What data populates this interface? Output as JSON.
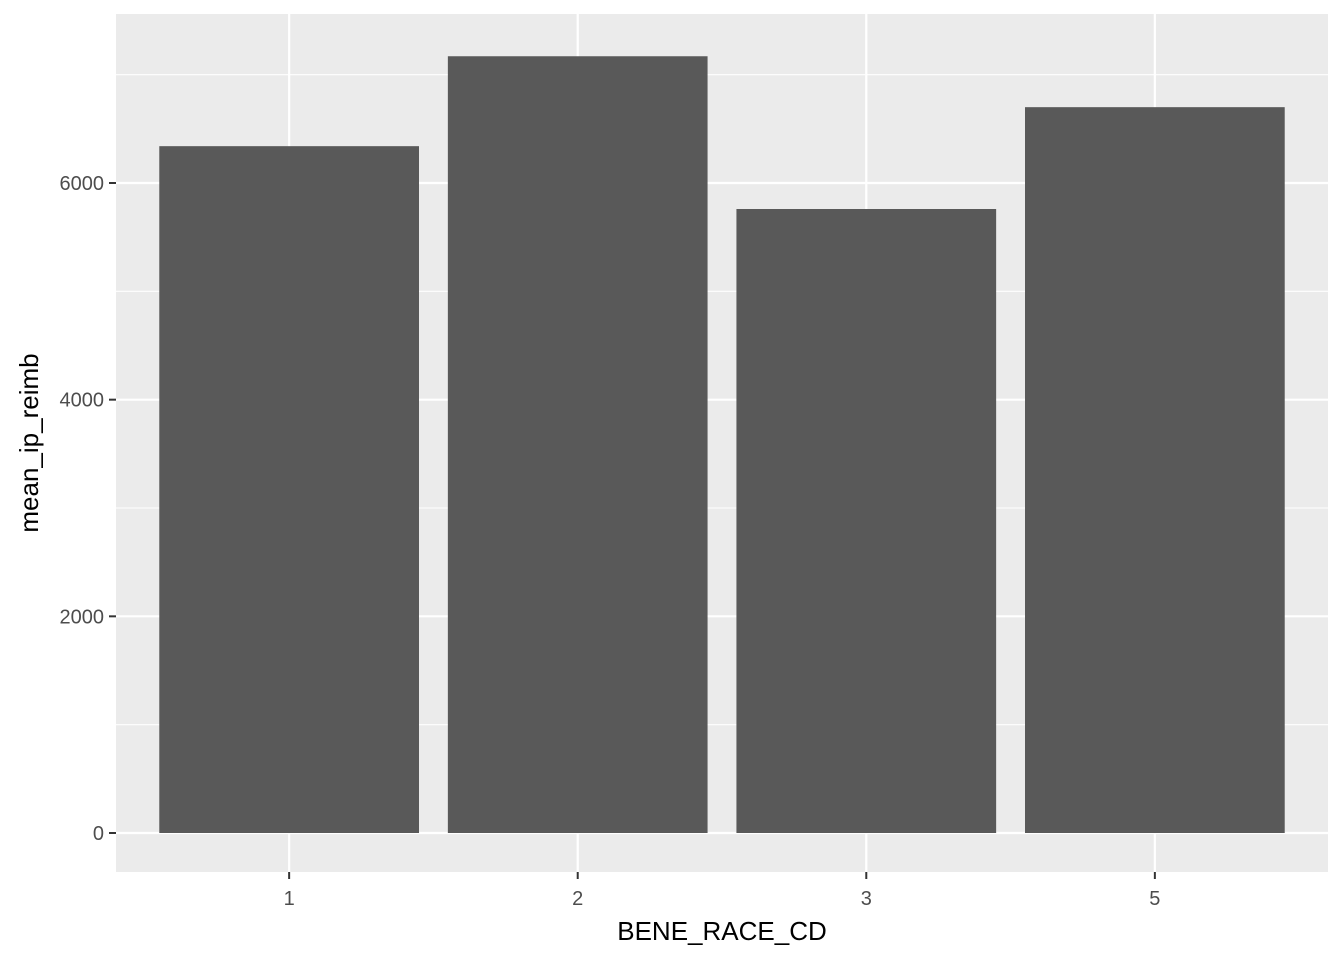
{
  "chart_data": {
    "type": "bar",
    "title": "",
    "xlabel": "BENE_RACE_CD",
    "ylabel": "mean_ip_reimb",
    "categories": [
      "1",
      "2",
      "3",
      "5"
    ],
    "values": [
      6340,
      7170,
      5760,
      6700
    ],
    "ylim": [
      -360,
      7560
    ],
    "yticks": [
      0,
      2000,
      4000,
      6000
    ],
    "y_minor_ticks": [
      1000,
      3000,
      5000,
      7000
    ],
    "grid": true,
    "legend": "none",
    "colors": {
      "panel": "#ebebeb",
      "grid": "#ffffff",
      "bar": "#595959",
      "tick": "#333333",
      "tick_text": "#4d4d4d",
      "axis_title": "#000000"
    }
  }
}
